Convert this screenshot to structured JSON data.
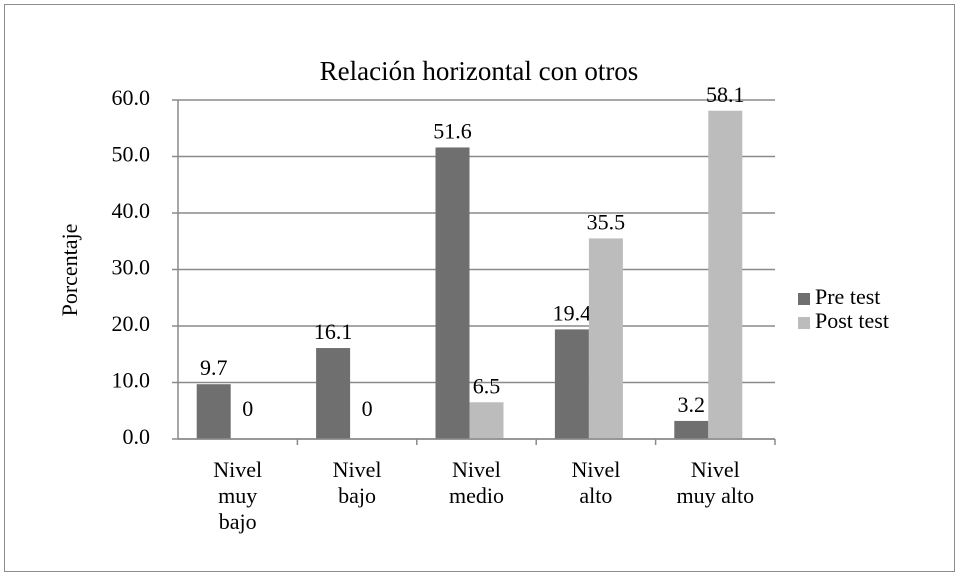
{
  "chart_data": {
    "type": "bar",
    "title": "Relación horizontal con otros",
    "y_label": "Porcentaje",
    "categories": [
      "Nivel\nmuy\nbajo",
      "Nivel\nbajo",
      "Nivel\nmedio",
      "Nivel\nalto",
      "Nivel\nmuy alto"
    ],
    "series": [
      {
        "name": "Pre test",
        "color": "#6f6f6f",
        "values": [
          9.7,
          16.1,
          51.6,
          19.4,
          3.2
        ]
      },
      {
        "name": "Post test",
        "color": "#bcbcbc",
        "values": [
          0,
          0,
          6.5,
          35.5,
          58.1
        ]
      }
    ],
    "ylim": [
      0,
      60
    ],
    "yticks": [
      {
        "value": 0,
        "label": "0.0"
      },
      {
        "value": 10,
        "label": "10.0"
      },
      {
        "value": 20,
        "label": "20.0"
      },
      {
        "value": 30,
        "label": "30.0"
      },
      {
        "value": 40,
        "label": "40.0"
      },
      {
        "value": 50,
        "label": "50.0"
      },
      {
        "value": 60,
        "label": "60.0"
      }
    ],
    "grid": true,
    "legend": "right"
  }
}
